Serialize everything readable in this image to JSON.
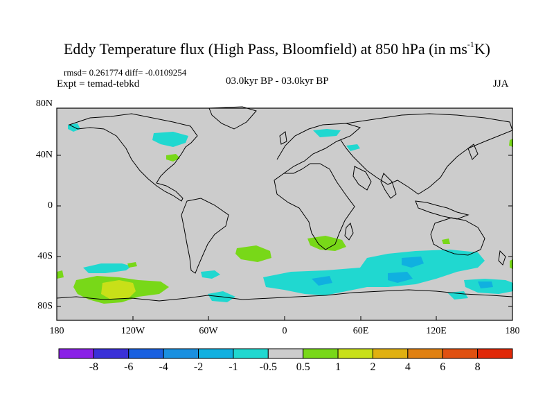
{
  "title": {
    "main": "Eddy Temperature flux (High Pass, Bloomfield) at 850 hPa (in ms",
    "superscript": "-1",
    "unit_end": "K)"
  },
  "stats": "rmsd= 0.261774 diff= -0.0109254",
  "experiment": "Expt = temad-tebkd",
  "period": "03.0kyr BP - 03.0kyr BP",
  "season": "JJA",
  "lat_labels": [
    "80N",
    "40N",
    "0",
    "40S",
    "80S"
  ],
  "lon_labels": [
    "180",
    "120W",
    "60W",
    "0",
    "60E",
    "120E",
    "180"
  ],
  "colorbar": {
    "labels": [
      "-8",
      "-6",
      "-4",
      "-2",
      "-1",
      "-0.5",
      "0.5",
      "1",
      "2",
      "4",
      "6",
      "8"
    ],
    "colors": [
      "#8a20e6",
      "#3a30d8",
      "#1a60e0",
      "#1a90e0",
      "#10b0e0",
      "#20d8d0",
      "#cccccc",
      "#78d818",
      "#c8e018",
      "#e0b010",
      "#e08010",
      "#e05010",
      "#e02808"
    ]
  },
  "map": {
    "background": "#cccccc",
    "colors": {
      "cyan": "#20d8d0",
      "lightblue": "#10b0e0",
      "green": "#78d818",
      "yellow": "#c8e018"
    }
  }
}
